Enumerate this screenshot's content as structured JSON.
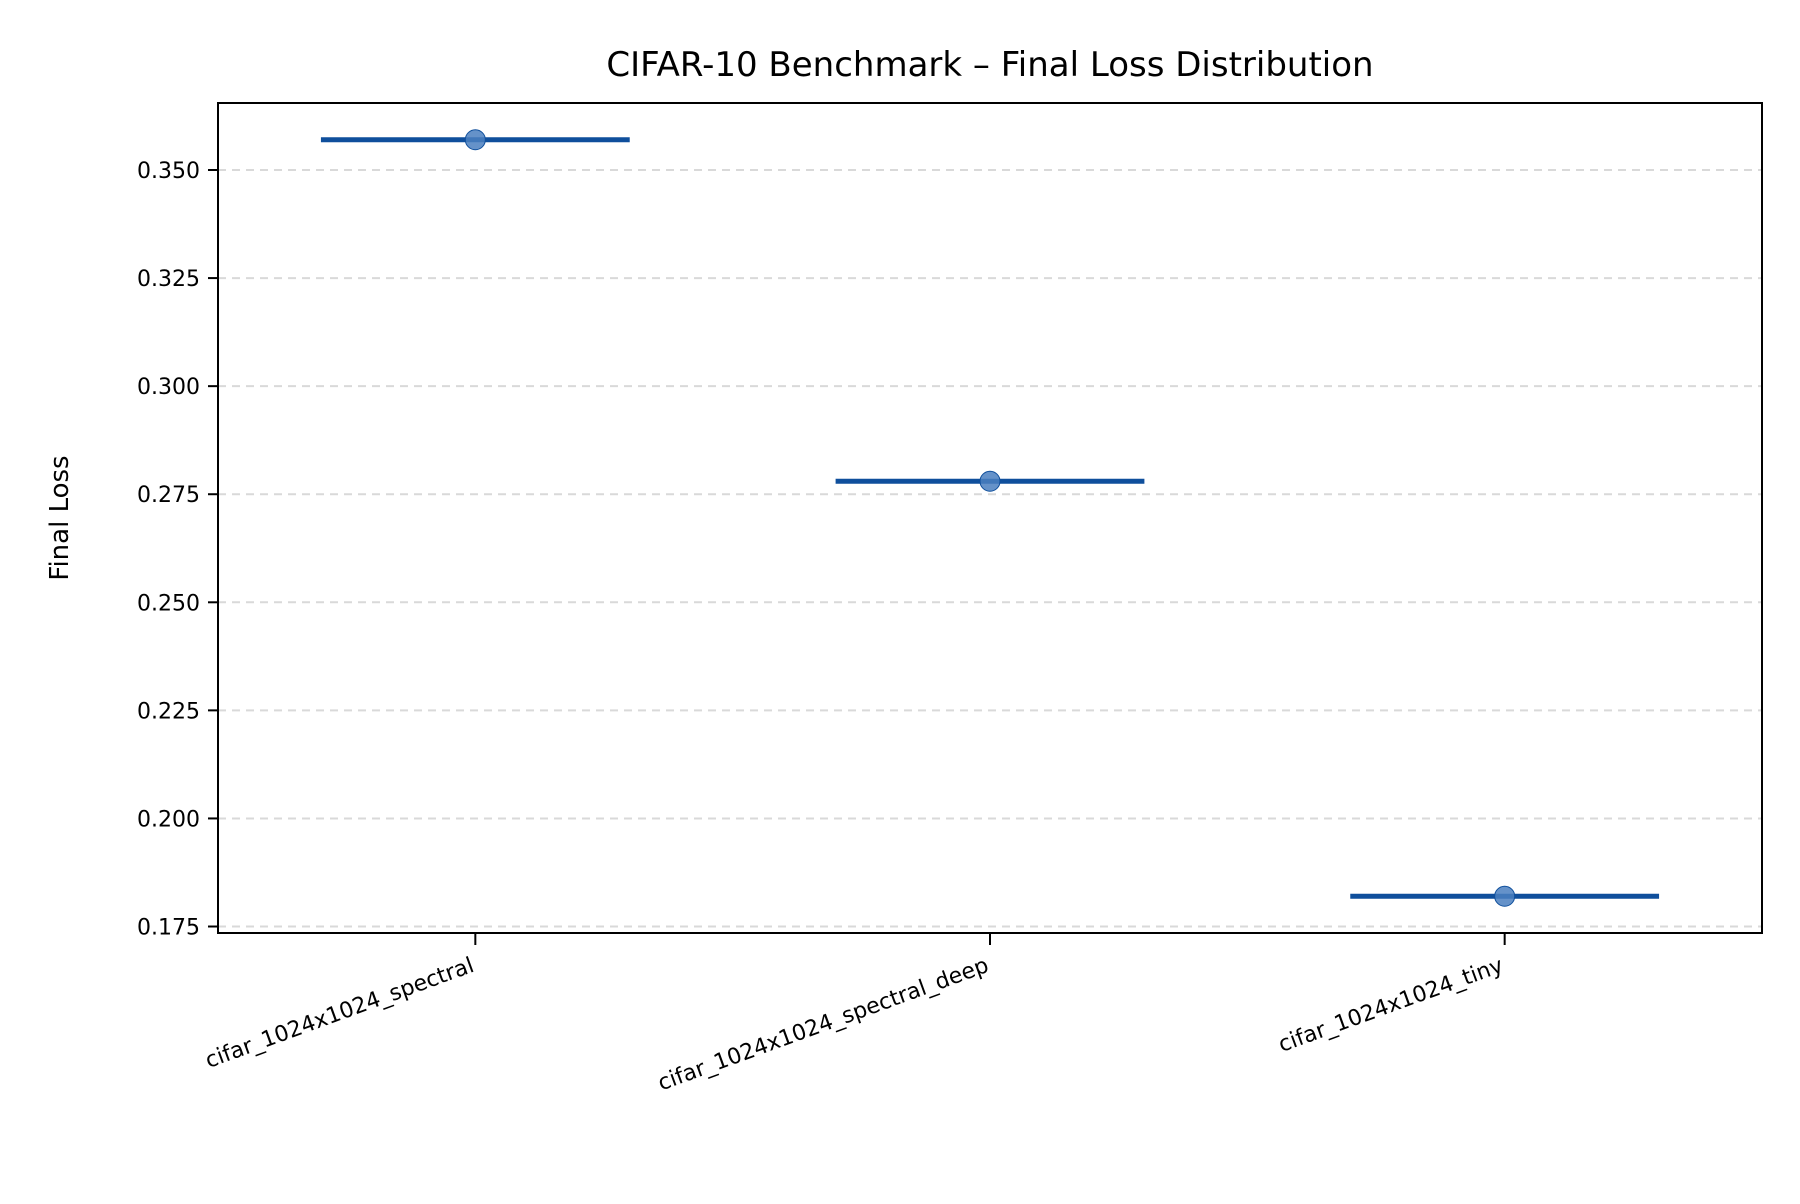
{
  "chart_data": {
    "type": "box",
    "title": "CIFAR-10 Benchmark – Final Loss Distribution",
    "xlabel": "",
    "ylabel": "Final Loss",
    "categories": [
      "cifar_1024x1024_spectral",
      "cifar_1024x1024_spectral_deep",
      "cifar_1024x1024_tiny"
    ],
    "values": [
      0.357,
      0.278,
      0.182
    ],
    "ylim": [
      0.1735,
      0.3655
    ],
    "yticks": [
      0.175,
      0.2,
      0.225,
      0.25,
      0.275,
      0.3,
      0.325,
      0.35
    ],
    "ytick_labels": [
      "0.175",
      "0.200",
      "0.225",
      "0.250",
      "0.275",
      "0.300",
      "0.325",
      "0.350"
    ],
    "grid": "y-dashed",
    "colors": {
      "median_line": "#0f4f9c",
      "point_fill": "#4a7fbf",
      "grid": "#d9d9d9",
      "axes": "#000000"
    }
  }
}
